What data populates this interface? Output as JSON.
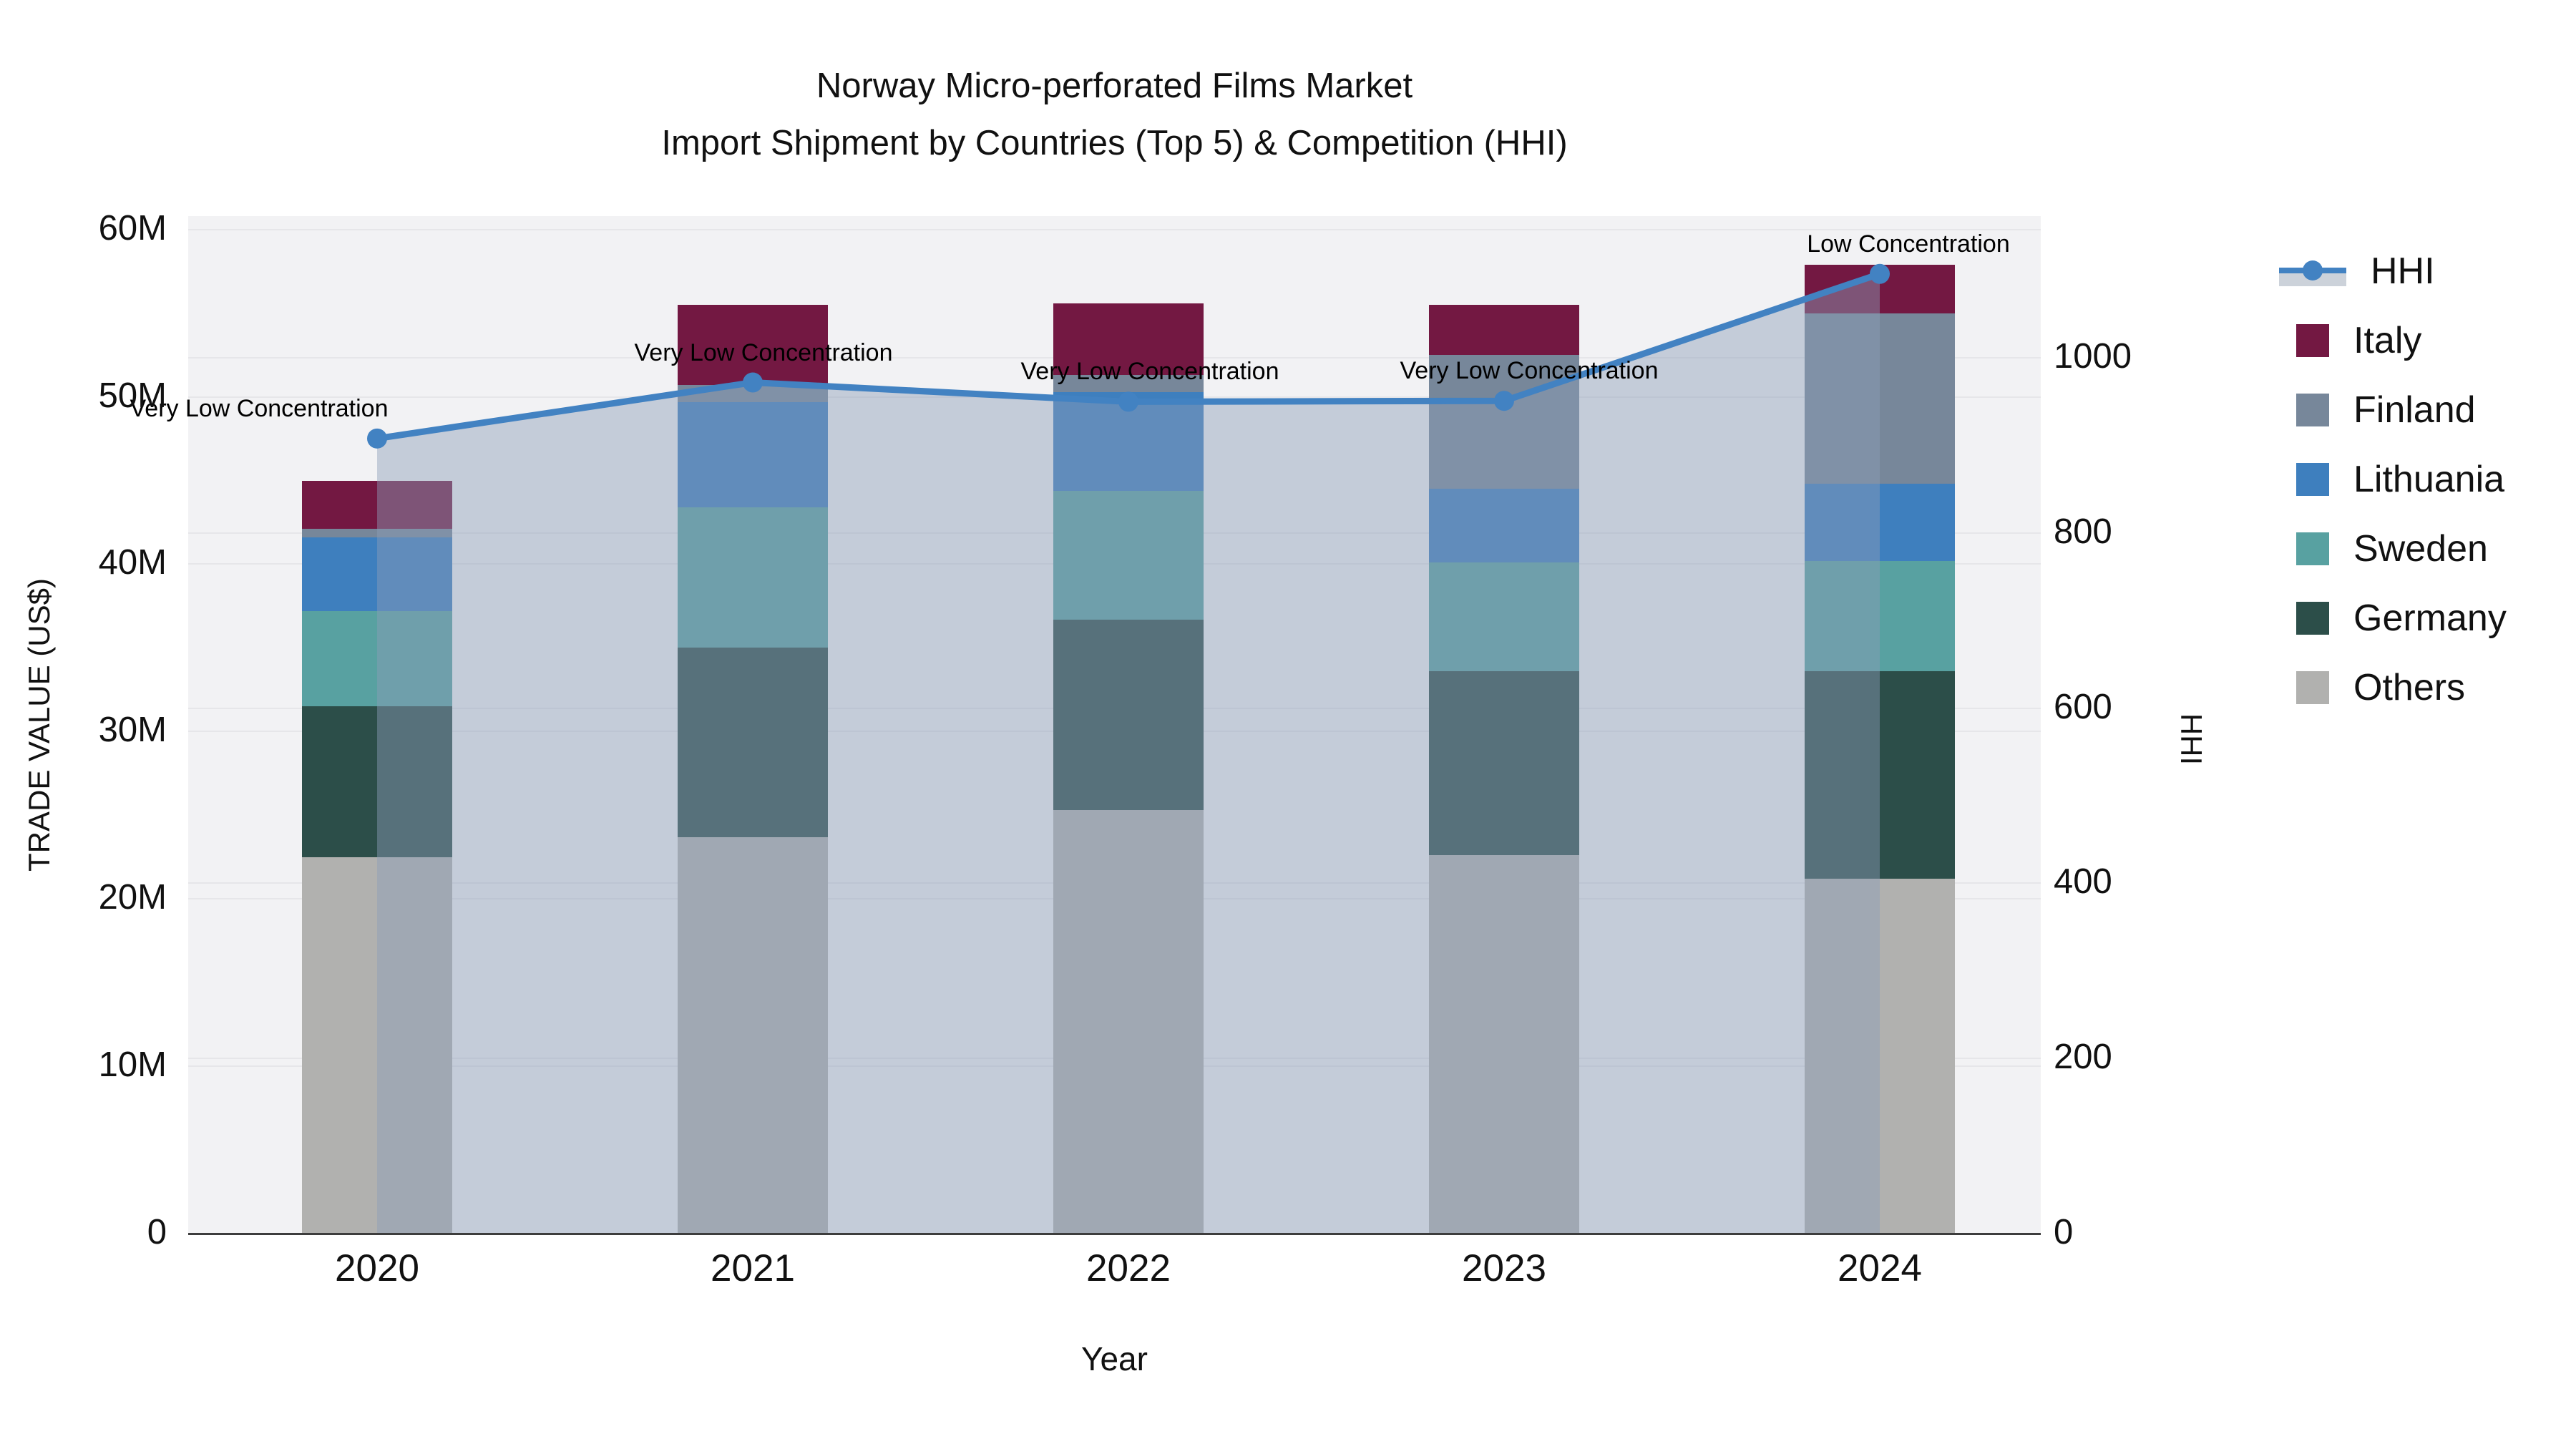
{
  "chart_data": {
    "type": "combo-stacked-bar-line",
    "title_line1": "Norway Micro-perforated Films Market",
    "title_line2": "Import Shipment by Countries (Top 5) & Competition (HHI)",
    "xlabel": "Year",
    "categories": [
      "2020",
      "2021",
      "2022",
      "2023",
      "2024"
    ],
    "y_left": {
      "label": "TRADE VALUE (US$)",
      "unit": "M US$",
      "ticks": [
        "0",
        "10M",
        "20M",
        "30M",
        "40M",
        "50M",
        "60M"
      ],
      "tick_values": [
        0,
        10,
        20,
        30,
        40,
        50,
        60
      ],
      "axis_max": 60.8,
      "grid": true
    },
    "y_right": {
      "label": "HHI",
      "ticks": [
        "0",
        "200",
        "400",
        "600",
        "800",
        "1000"
      ],
      "tick_values": [
        0,
        200,
        400,
        600,
        800,
        1000
      ],
      "axis_max": 1162,
      "grid": true
    },
    "series": [
      {
        "name": "Others",
        "color": "#b1b1af",
        "values": [
          22.5,
          23.7,
          25.3,
          22.6,
          21.2
        ]
      },
      {
        "name": "Germany",
        "color": "#2c4e49",
        "values": [
          9.0,
          11.3,
          11.4,
          11.0,
          12.4
        ]
      },
      {
        "name": "Sweden",
        "color": "#58a1a1",
        "values": [
          5.7,
          8.4,
          7.7,
          6.5,
          6.6
        ]
      },
      {
        "name": "Lithuania",
        "color": "#3e7fbe",
        "values": [
          4.4,
          6.3,
          5.9,
          4.4,
          4.6
        ]
      },
      {
        "name": "Finland",
        "color": "#77879a",
        "values": [
          0.5,
          1.0,
          1.0,
          8.0,
          10.2
        ]
      },
      {
        "name": "Italy",
        "color": "#731842",
        "values": [
          2.9,
          4.8,
          4.3,
          3.0,
          2.9
        ]
      }
    ],
    "totals": [
      45.0,
      55.5,
      55.6,
      55.5,
      57.9
    ],
    "line_series": {
      "name": "HHI",
      "color": "#4282c2",
      "area_fill_color": "rgba(140,158,184,0.45)",
      "legend_band_color": "#ccd2da",
      "values": [
        908,
        972,
        950,
        951,
        1096
      ]
    },
    "annotations": [
      {
        "x": "2020",
        "text": "Very Low Concentration"
      },
      {
        "x": "2021",
        "text": "Very Low Concentration"
      },
      {
        "x": "2022",
        "text": "Very Low Concentration"
      },
      {
        "x": "2023",
        "text": "Very Low Concentration"
      },
      {
        "x": "2024",
        "text": "Low Concentration"
      }
    ],
    "legend_order": [
      "HHI",
      "Italy",
      "Finland",
      "Lithuania",
      "Sweden",
      "Germany",
      "Others"
    ],
    "legend_position": "right",
    "plot_background": "#f2f2f4"
  }
}
